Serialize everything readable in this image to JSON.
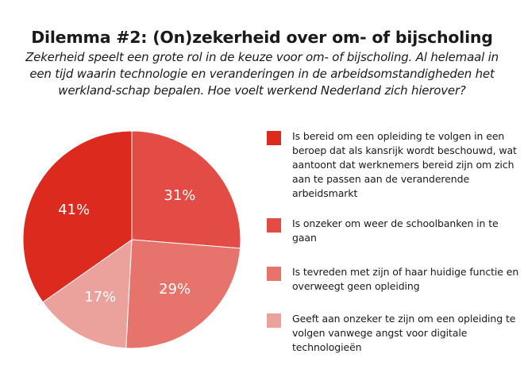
{
  "header": {
    "title": "Dilemma #2: (On)zekerheid over om- of bijscholing",
    "subtitle": "Zekerheid speelt een grote rol in de keuze voor om- of bijscholing. Al helemaal in een tijd waarin technologie en veranderingen in de arbeidsomstandigheden het werkland-schap bepalen. Hoe voelt werkend Nederland zich hierover?"
  },
  "chart_data": {
    "type": "pie",
    "slices": [
      {
        "label": "Is bereid om een opleiding te volgen in een beroep dat als kansrijk wordt beschouwd, wat aantoont dat werknemers bereid zijn om zich aan te passen aan de veranderende arbeidsmarkt",
        "value": 41,
        "value_label": "41%",
        "color": "#dc2a1f"
      },
      {
        "label": "Is onzeker om weer de schoolbanken in te gaan",
        "value": 31,
        "value_label": "31%",
        "color": "#e24c44"
      },
      {
        "label": "Is tevreden met zijn of haar huidige functie en overweegt geen opleiding",
        "value": 29,
        "value_label": "29%",
        "color": "#e6746d"
      },
      {
        "label": "Geeft aan onzeker te zijn om een opleiding te volgen vanwege angst voor digitale technologieën",
        "value": 17,
        "value_label": "17%",
        "color": "#eba29c"
      }
    ],
    "legend_position": "right"
  }
}
